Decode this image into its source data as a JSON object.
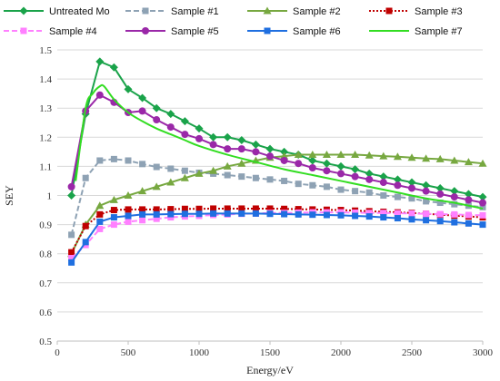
{
  "chart_data": {
    "type": "line",
    "xlabel": "Energy/eV",
    "ylabel": "SEY",
    "xlim": [
      0,
      3000
    ],
    "ylim": [
      0.5,
      1.5
    ],
    "x_ticks": [
      0,
      500,
      1000,
      1500,
      2000,
      2500,
      3000
    ],
    "y_ticks": [
      0.5,
      0.6,
      0.7,
      0.8,
      0.9,
      1,
      1.1,
      1.2,
      1.3,
      1.4,
      1.5
    ],
    "x_tick_labels": [
      "0",
      "500",
      "1000",
      "1500",
      "2000",
      "2500",
      "3000"
    ],
    "y_tick_labels": [
      "0.5",
      "0.6",
      "0.7",
      "0.8",
      "0.9",
      "1",
      "1.1",
      "1.2",
      "1.3",
      "1.4",
      "1.5"
    ],
    "grid": "horizontal",
    "legend_position": "top",
    "series": [
      {
        "name": "Untreated Mo",
        "color": "#1aa34a",
        "dash": "solid",
        "marker": "diamond",
        "smooth": false,
        "x": [
          100,
          200,
          300,
          400,
          500,
          600,
          700,
          800,
          900,
          1000,
          1100,
          1200,
          1300,
          1400,
          1500,
          1600,
          1700,
          1800,
          1900,
          2000,
          2100,
          2200,
          2300,
          2400,
          2500,
          2600,
          2700,
          2800,
          2900,
          3000
        ],
        "y": [
          1.0,
          1.28,
          1.46,
          1.44,
          1.365,
          1.335,
          1.3,
          1.28,
          1.255,
          1.23,
          1.2,
          1.2,
          1.19,
          1.175,
          1.16,
          1.15,
          1.14,
          1.12,
          1.11,
          1.1,
          1.09,
          1.075,
          1.065,
          1.055,
          1.045,
          1.035,
          1.025,
          1.015,
          1.005,
          0.995
        ]
      },
      {
        "name": "Sample #1",
        "color": "#8ea2b4",
        "dash": "dash",
        "marker": "square",
        "smooth": false,
        "x": [
          100,
          200,
          300,
          400,
          500,
          600,
          700,
          800,
          900,
          1000,
          1100,
          1200,
          1300,
          1400,
          1500,
          1600,
          1700,
          1800,
          1900,
          2000,
          2100,
          2200,
          2300,
          2400,
          2500,
          2600,
          2700,
          2800,
          2900,
          3000
        ],
        "y": [
          0.865,
          1.06,
          1.12,
          1.125,
          1.12,
          1.108,
          1.098,
          1.092,
          1.085,
          1.078,
          1.075,
          1.07,
          1.065,
          1.06,
          1.055,
          1.05,
          1.04,
          1.035,
          1.03,
          1.02,
          1.015,
          1.01,
          1.0,
          0.995,
          0.99,
          0.98,
          0.975,
          0.97,
          0.965,
          0.96
        ]
      },
      {
        "name": "Sample #2",
        "color": "#77a840",
        "dash": "solid",
        "marker": "triangle",
        "smooth": false,
        "x": [
          100,
          200,
          300,
          400,
          500,
          600,
          700,
          800,
          900,
          1000,
          1100,
          1200,
          1300,
          1400,
          1500,
          1600,
          1700,
          1800,
          1900,
          2000,
          2100,
          2200,
          2300,
          2400,
          2500,
          2600,
          2700,
          2800,
          2900,
          3000
        ],
        "y": [
          0.8,
          0.9,
          0.965,
          0.985,
          1.0,
          1.015,
          1.03,
          1.045,
          1.06,
          1.075,
          1.085,
          1.1,
          1.11,
          1.12,
          1.13,
          1.135,
          1.14,
          1.14,
          1.14,
          1.14,
          1.14,
          1.138,
          1.135,
          1.133,
          1.13,
          1.127,
          1.125,
          1.12,
          1.115,
          1.11
        ]
      },
      {
        "name": "Sample #3",
        "color": "#c00000",
        "dash": "dot",
        "marker": "square",
        "smooth": false,
        "x": [
          100,
          200,
          300,
          400,
          500,
          600,
          700,
          800,
          900,
          1000,
          1100,
          1200,
          1300,
          1400,
          1500,
          1600,
          1700,
          1800,
          1900,
          2000,
          2100,
          2200,
          2300,
          2400,
          2500,
          2600,
          2700,
          2800,
          2900,
          3000
        ],
        "y": [
          0.805,
          0.895,
          0.935,
          0.95,
          0.952,
          0.952,
          0.952,
          0.953,
          0.954,
          0.954,
          0.955,
          0.955,
          0.955,
          0.955,
          0.955,
          0.954,
          0.953,
          0.952,
          0.951,
          0.95,
          0.948,
          0.946,
          0.944,
          0.942,
          0.94,
          0.937,
          0.934,
          0.931,
          0.928,
          0.925
        ]
      },
      {
        "name": "Sample #4",
        "color": "#ff80ff",
        "dash": "dash",
        "marker": "square",
        "smooth": false,
        "x": [
          100,
          200,
          300,
          400,
          500,
          600,
          700,
          800,
          900,
          1000,
          1100,
          1200,
          1300,
          1400,
          1500,
          1600,
          1700,
          1800,
          1900,
          2000,
          2100,
          2200,
          2300,
          2400,
          2500,
          2600,
          2700,
          2800,
          2900,
          3000
        ],
        "y": [
          0.785,
          0.83,
          0.885,
          0.9,
          0.91,
          0.915,
          0.92,
          0.925,
          0.928,
          0.93,
          0.933,
          0.935,
          0.937,
          0.938,
          0.94,
          0.94,
          0.941,
          0.942,
          0.942,
          0.942,
          0.941,
          0.94,
          0.94,
          0.939,
          0.938,
          0.937,
          0.936,
          0.935,
          0.933,
          0.932
        ]
      },
      {
        "name": "Sample #5",
        "color": "#9a28a8",
        "dash": "solid",
        "marker": "circle",
        "smooth": false,
        "x": [
          100,
          200,
          300,
          400,
          500,
          600,
          700,
          800,
          900,
          1000,
          1100,
          1200,
          1300,
          1400,
          1500,
          1600,
          1700,
          1800,
          1900,
          2000,
          2100,
          2200,
          2300,
          2400,
          2500,
          2600,
          2700,
          2800,
          2900,
          3000
        ],
        "y": [
          1.03,
          1.29,
          1.345,
          1.32,
          1.285,
          1.29,
          1.26,
          1.235,
          1.21,
          1.195,
          1.175,
          1.16,
          1.16,
          1.15,
          1.135,
          1.12,
          1.11,
          1.095,
          1.085,
          1.075,
          1.065,
          1.055,
          1.045,
          1.035,
          1.025,
          1.015,
          1.005,
          0.995,
          0.985,
          0.975
        ]
      },
      {
        "name": "Sample #6",
        "color": "#1f6fe0",
        "dash": "solid",
        "marker": "square",
        "smooth": false,
        "x": [
          100,
          200,
          300,
          400,
          500,
          600,
          700,
          800,
          900,
          1000,
          1100,
          1200,
          1300,
          1400,
          1500,
          1600,
          1700,
          1800,
          1900,
          2000,
          2100,
          2200,
          2300,
          2400,
          2500,
          2600,
          2700,
          2800,
          2900,
          3000
        ],
        "y": [
          0.77,
          0.84,
          0.91,
          0.925,
          0.93,
          0.935,
          0.935,
          0.936,
          0.937,
          0.937,
          0.938,
          0.938,
          0.938,
          0.938,
          0.937,
          0.936,
          0.935,
          0.934,
          0.933,
          0.932,
          0.93,
          0.928,
          0.925,
          0.922,
          0.918,
          0.915,
          0.912,
          0.908,
          0.904,
          0.9
        ]
      },
      {
        "name": "Sample #7",
        "color": "#33dd22",
        "dash": "solid",
        "marker": "none",
        "smooth": true,
        "x": [
          130,
          200,
          250,
          300,
          330,
          400,
          500,
          600,
          700,
          800,
          900,
          1000,
          1200,
          1400,
          1600,
          1800,
          2000,
          2200,
          2400,
          2600,
          2800,
          3000
        ],
        "y": [
          1.05,
          1.3,
          1.35,
          1.375,
          1.375,
          1.33,
          1.285,
          1.255,
          1.23,
          1.21,
          1.19,
          1.17,
          1.14,
          1.115,
          1.09,
          1.07,
          1.05,
          1.03,
          1.01,
          0.99,
          0.975,
          0.955
        ]
      }
    ]
  }
}
